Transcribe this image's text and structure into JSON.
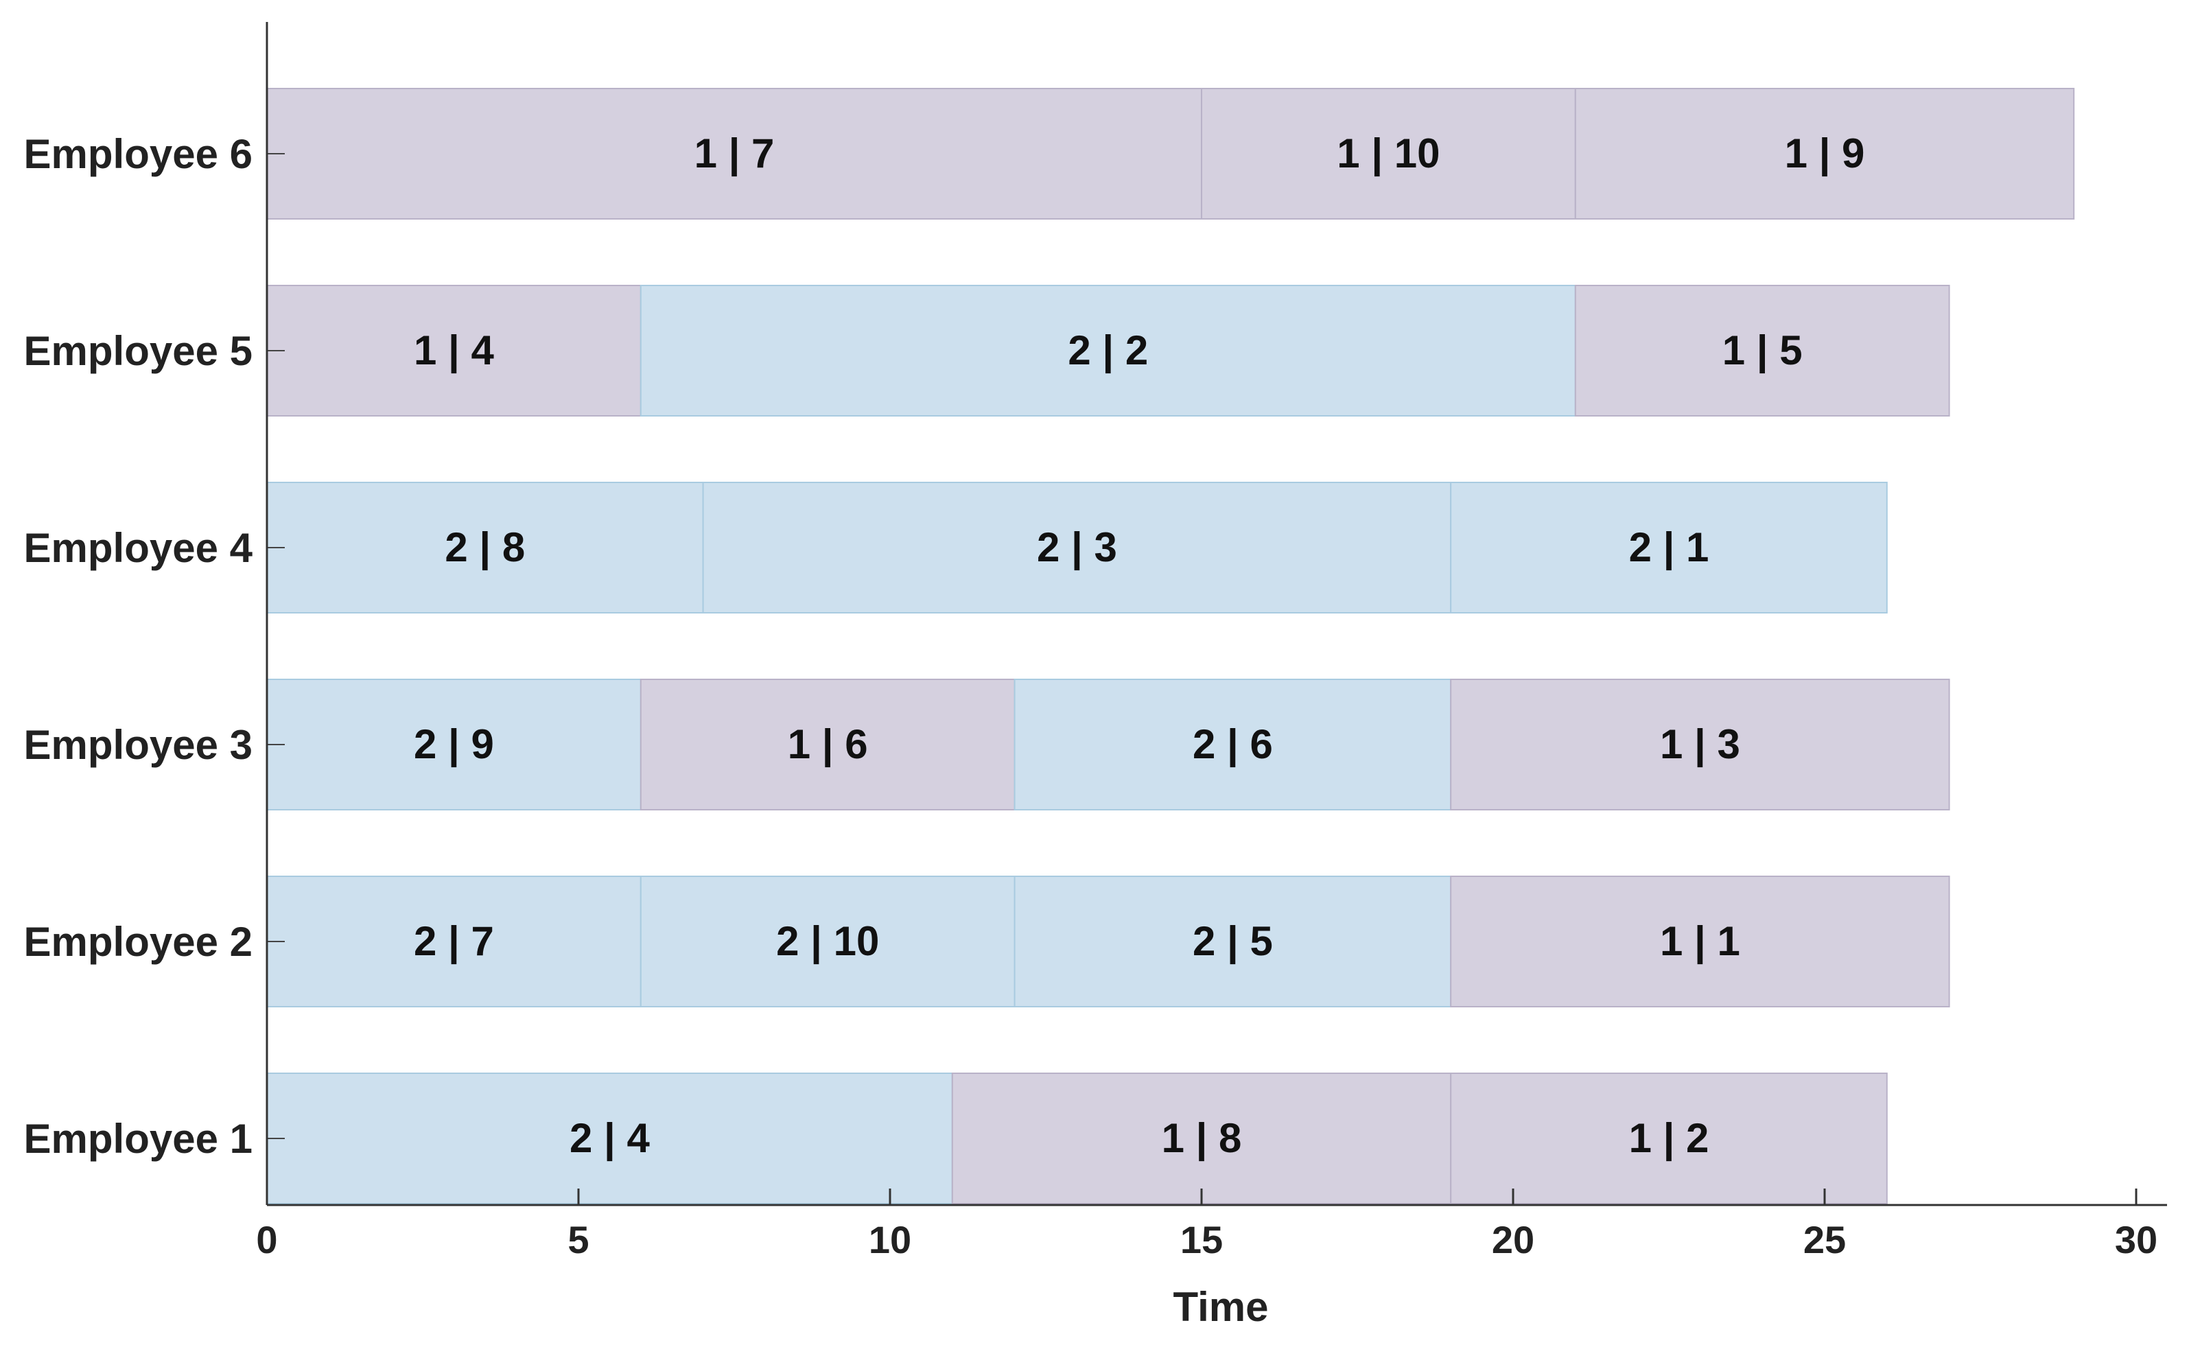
{
  "chart_data": {
    "type": "bar",
    "subtype": "gantt",
    "title": "",
    "xlabel": "Time",
    "ylabel": "",
    "xlim": [
      0,
      30
    ],
    "x_ticks": [
      0,
      5,
      10,
      15,
      20,
      25,
      30
    ],
    "grid": false,
    "categories": [
      "Employee 1",
      "Employee 2",
      "Employee 3",
      "Employee 4",
      "Employee 5",
      "Employee 6"
    ],
    "colors": {
      "1": "#d5d0df",
      "2": "#cde0ee"
    },
    "rows": [
      {
        "name": "Employee 1",
        "tasks": [
          {
            "start": 0,
            "end": 11,
            "group": 1,
            "label": "2 | 4",
            "type": 2
          },
          {
            "start": 11,
            "end": 19,
            "label": "1 | 8",
            "type": 1
          },
          {
            "start": 19,
            "end": 26,
            "label": "1 | 2",
            "type": 1
          }
        ]
      },
      {
        "name": "Employee 2",
        "tasks": [
          {
            "start": 0,
            "end": 6,
            "label": "2 | 7",
            "type": 2
          },
          {
            "start": 6,
            "end": 12,
            "label": "2 | 10",
            "type": 2
          },
          {
            "start": 12,
            "end": 19,
            "label": "2 | 5",
            "type": 2
          },
          {
            "start": 19,
            "end": 27,
            "label": "1 | 1",
            "type": 1
          }
        ]
      },
      {
        "name": "Employee 3",
        "tasks": [
          {
            "start": 0,
            "end": 6,
            "label": "2 | 9",
            "type": 2
          },
          {
            "start": 6,
            "end": 12,
            "label": "1 | 6",
            "type": 1
          },
          {
            "start": 12,
            "end": 19,
            "label": "2 | 6",
            "type": 2
          },
          {
            "start": 19,
            "end": 27,
            "label": "1 | 3",
            "type": 1
          }
        ]
      },
      {
        "name": "Employee 4",
        "tasks": [
          {
            "start": 0,
            "end": 7,
            "label": "2 | 8",
            "type": 2
          },
          {
            "start": 7,
            "end": 19,
            "label": "2 | 3",
            "type": 2
          },
          {
            "start": 19,
            "end": 26,
            "label": "2 | 1",
            "type": 2
          }
        ]
      },
      {
        "name": "Employee 5",
        "tasks": [
          {
            "start": 0,
            "end": 6,
            "label": "1 | 4",
            "type": 1
          },
          {
            "start": 6,
            "end": 21,
            "label": "2 | 2",
            "type": 2
          },
          {
            "start": 21,
            "end": 27,
            "label": "1 | 5",
            "type": 1
          }
        ]
      },
      {
        "name": "Employee 6",
        "tasks": [
          {
            "start": 0,
            "end": 15,
            "label": "1 | 7",
            "type": 1
          },
          {
            "start": 15,
            "end": 21,
            "label": "1 | 10",
            "type": 1
          },
          {
            "start": 21,
            "end": 29,
            "label": "1 | 9",
            "type": 1
          }
        ]
      }
    ]
  }
}
